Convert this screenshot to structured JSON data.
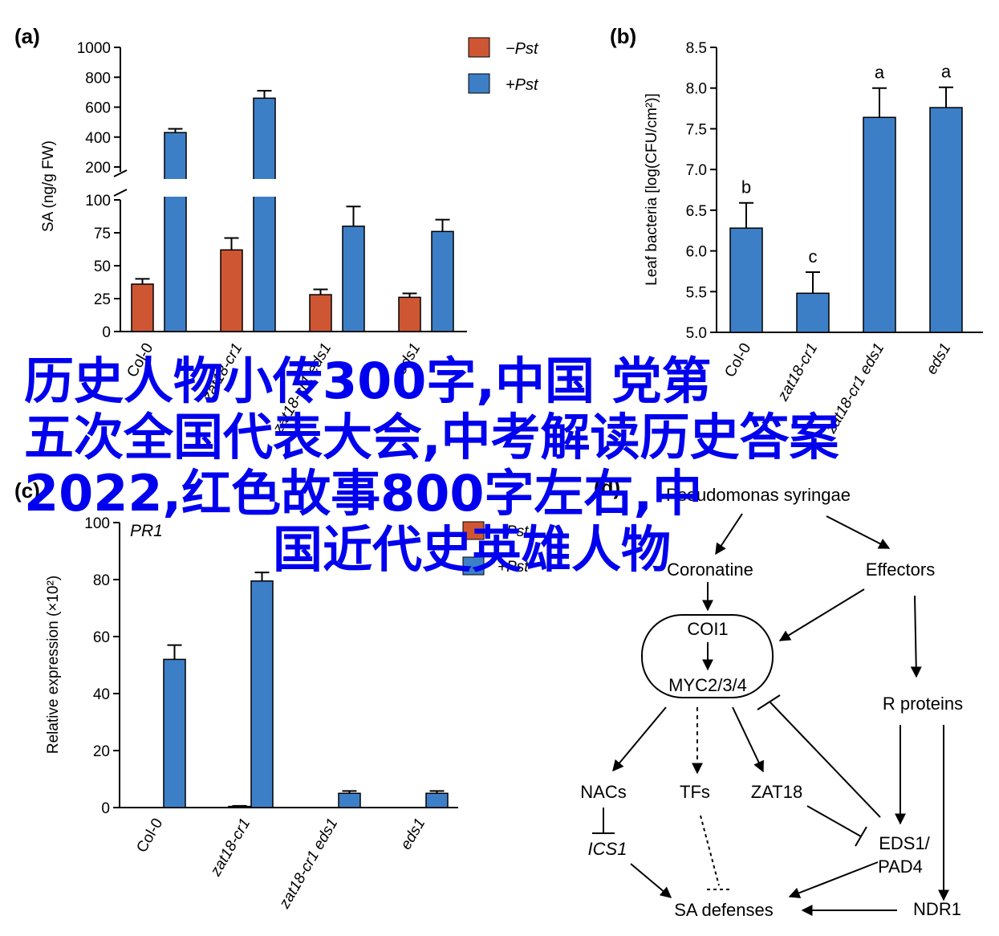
{
  "panels": {
    "a": {
      "label": "(a)"
    },
    "b": {
      "label": "(b)"
    },
    "c": {
      "label": "(c)"
    },
    "d": {
      "label": "(d)"
    }
  },
  "legend": {
    "minus": "−Pst",
    "plus": "+Pst"
  },
  "colors": {
    "minus": "#cf5633",
    "plus": "#3d7fc7"
  },
  "overlay": {
    "line1": "历史人物小传300字,中国 党第",
    "line2": "五次全国代表大会,中考解读历史答案",
    "line3": "2022,红色故事800字左右,中",
    "line4": "国近代史英雄人物"
  },
  "chart_data": [
    {
      "panel": "a",
      "type": "bar",
      "ylabel": "SA (ng/g FW)",
      "categories": [
        "Col-0",
        "zat18-cr1",
        "zat18-cr1 eds1",
        "eds1"
      ],
      "ylim_lower": [
        0,
        100
      ],
      "ylim_upper": [
        200,
        1000
      ],
      "yticks_lower": [
        0,
        25,
        50,
        75,
        100
      ],
      "yticks_upper": [
        200,
        400,
        600,
        800,
        1000
      ],
      "series": [
        {
          "name": "−Pst",
          "values": [
            36,
            62,
            28,
            26
          ],
          "errors": [
            4,
            9,
            4,
            3
          ]
        },
        {
          "name": "+Pst",
          "values": [
            430,
            660,
            80,
            76
          ],
          "errors": [
            25,
            50,
            15,
            9
          ]
        }
      ],
      "legend_position": "top-right"
    },
    {
      "panel": "b",
      "type": "bar",
      "ylabel": "Leaf bacteria [log(CFU/cm²)]",
      "categories": [
        "Col-0",
        "zat18-cr1",
        "zat18-cr1 eds1",
        "eds1"
      ],
      "ylim": [
        5.0,
        8.5
      ],
      "yticks": [
        "5.0",
        "5.5",
        "6.0",
        "6.5",
        "7.0",
        "7.5",
        "8.0",
        "8.5"
      ],
      "values": [
        6.28,
        5.48,
        7.64,
        7.76
      ],
      "errors": [
        0.31,
        0.26,
        0.36,
        0.25
      ],
      "letters": [
        "b",
        "c",
        "a",
        "a"
      ]
    },
    {
      "panel": "c",
      "type": "bar",
      "title": "PR1",
      "ylabel": "Relative expression (×10²)",
      "categories": [
        "Col-0",
        "zat18-cr1",
        "zat18-cr1 eds1",
        "eds1"
      ],
      "ylim": [
        0,
        100
      ],
      "yticks": [
        0,
        20,
        40,
        60,
        80,
        100
      ],
      "series": [
        {
          "name": "−Pst",
          "values": [
            0,
            0.4,
            0,
            0
          ],
          "errors": [
            0,
            0.2,
            0,
            0
          ]
        },
        {
          "name": "+Pst",
          "values": [
            52,
            79.5,
            5,
            5
          ],
          "errors": [
            5,
            3,
            0.8,
            0.8
          ]
        }
      ]
    }
  ],
  "diagram": {
    "nodes": {
      "pseudomonas": "Pseudomonas syringae",
      "coronatine": "Coronatine",
      "effectors": "Effectors",
      "coi1": "COI1",
      "myc": "MYC2/3/4",
      "rproteins": "R proteins",
      "nacs": "NACs",
      "tfs": "TFs",
      "zat18": "ZAT18",
      "ics1": "ICS1",
      "eds1": "EDS1/",
      "pad4": "PAD4",
      "ndr1": "NDR1",
      "sadef": "SA defenses"
    }
  }
}
